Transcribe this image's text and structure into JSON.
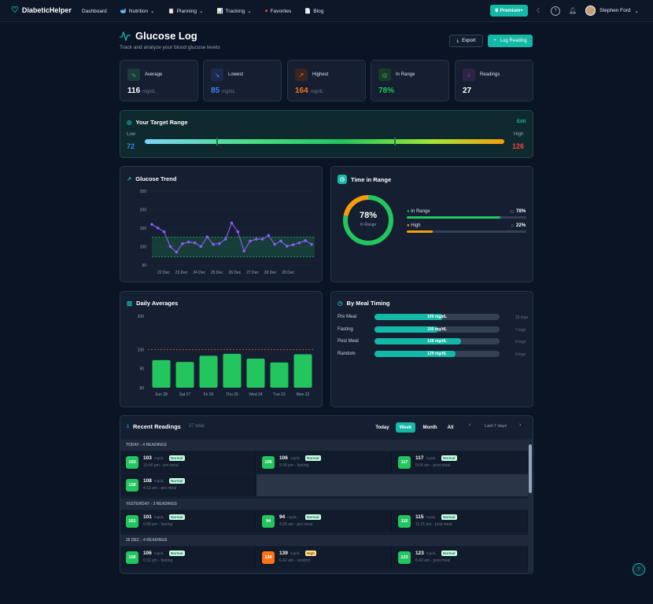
{
  "nav": {
    "logo_text": "DiabeticHelper",
    "items": [
      {
        "label": "Dashboard",
        "icon": ""
      },
      {
        "label": "Nutrition",
        "icon": "bowl-icon"
      },
      {
        "label": "Planning",
        "icon": "clipboard-icon"
      },
      {
        "label": "Tracking",
        "icon": "chart-icon"
      },
      {
        "label": "Favorites",
        "icon": "heart-icon"
      },
      {
        "label": "Blog",
        "icon": "note-icon"
      }
    ],
    "premium_label": "Premium+",
    "user_name": "Stephen Ford"
  },
  "header": {
    "title": "Glucose Log",
    "subtitle": "Track and analyze your blood glucose levels",
    "export_label": "Export",
    "log_label": "Log Reading"
  },
  "stats": [
    {
      "label": "Average",
      "value": "116",
      "unit": "mg/dL",
      "color": "#ffffff"
    },
    {
      "label": "Lowest",
      "value": "85",
      "unit": "mg/dL",
      "color": "#3b82f6"
    },
    {
      "label": "Highest",
      "value": "164",
      "unit": "mg/dL",
      "color": "#f97316"
    },
    {
      "label": "In Range",
      "value": "78%",
      "unit": "",
      "color": "#22c55e"
    },
    {
      "label": "Readings",
      "value": "27",
      "unit": "",
      "color": "#ffffff"
    }
  ],
  "target": {
    "title": "Your Target Range",
    "edit_label": "Edit",
    "low_label": "Low",
    "low_value": "72",
    "high_label": "High",
    "high_value": "126"
  },
  "trend": {
    "title": "Glucose Trend"
  },
  "chart_data": [
    {
      "type": "line",
      "title": "Glucose Trend",
      "y_ticks": [
        250,
        200,
        150,
        100,
        50
      ],
      "ylim": [
        50,
        250
      ],
      "x_labels": [
        "22 Dec",
        "23 Dec",
        "24 Dec",
        "25 Dec",
        "26 Dec",
        "27 Dec",
        "28 Dec",
        "28 Dec"
      ],
      "target_band": [
        72,
        126
      ],
      "values": [
        160,
        150,
        140,
        100,
        85,
        108,
        112,
        110,
        100,
        126,
        106,
        108,
        120,
        164,
        140,
        88,
        115,
        120,
        120,
        130,
        106,
        115,
        101,
        105,
        110,
        116,
        106
      ],
      "grid": true
    },
    {
      "type": "bar",
      "title": "Daily Averages",
      "categories": [
        "Sun 28",
        "Sat 27",
        "Fri 26",
        "Thu 25",
        "Wed 24",
        "Tue 23",
        "Mon 22"
      ],
      "values": [
        108,
        104,
        117,
        121,
        111,
        103,
        120
      ],
      "y_ticks": [
        200,
        130,
        90,
        50
      ],
      "ylim": [
        50,
        200
      ],
      "reference_line": 130
    },
    {
      "type": "pie",
      "title": "Time in Range",
      "center_value": "78%",
      "center_label": "In Range",
      "slices": [
        {
          "name": "In Range",
          "count": "21",
          "percent": 78,
          "color": "#22c55e"
        },
        {
          "name": "High",
          "count": "6",
          "percent": 22,
          "color": "#f59e0b"
        }
      ]
    },
    {
      "type": "bar",
      "title": "By Meal Timing",
      "categories": [
        "Pre Meal",
        "Fasting",
        "Post Meal",
        "Random"
      ],
      "values": [
        109,
        100,
        138,
        129
      ],
      "value_labels": [
        "109 mg/dL",
        "100 mg/dL",
        "138 mg/dL",
        "129 mg/dL"
      ],
      "counts": [
        "10 logs",
        "7 logs",
        "6 logs",
        "4 logs"
      ],
      "fill_fraction": [
        0.55,
        0.51,
        0.69,
        0.65
      ]
    }
  ],
  "daily": {
    "title": "Daily Averages"
  },
  "tir": {
    "title": "Time in Range"
  },
  "meal": {
    "title": "By Meal Timing"
  },
  "recent": {
    "title": "Recent Readings",
    "total": "27 total",
    "filters": [
      "Today",
      "Week",
      "Month",
      "All"
    ],
    "active_filter": "Week",
    "range_label": "Last 7 days",
    "groups": [
      {
        "label": "TODAY - 4 READINGS",
        "readings": [
          {
            "value": "103",
            "unit": "mg/dL",
            "status": "Normal",
            "sub": "10:40 pm - pre meal",
            "color": "#22c55e"
          },
          {
            "value": "106",
            "unit": "mg/dL",
            "status": "Normal",
            "sub": "5:38 pm - fasting",
            "color": "#22c55e"
          },
          {
            "value": "117",
            "unit": "mg/dL",
            "status": "Normal",
            "sub": "9:04 am - post meal",
            "color": "#22c55e"
          },
          {
            "value": "108",
            "unit": "mg/dL",
            "status": "Normal",
            "sub": "4:19 am - pre meal",
            "color": "#22c55e"
          }
        ]
      },
      {
        "label": "YESTERDAY - 3 READINGS",
        "readings": [
          {
            "value": "101",
            "unit": "mg/dL",
            "status": "Normal",
            "sub": "5:08 pm - fasting",
            "color": "#22c55e"
          },
          {
            "value": "94",
            "unit": "mg/dL",
            "status": "Normal",
            "sub": "4:25 am - pre meal",
            "color": "#22c55e"
          },
          {
            "value": "115",
            "unit": "mg/dL",
            "status": "Normal",
            "sub": "11:21 am - post meal",
            "color": "#22c55e"
          }
        ]
      },
      {
        "label": "26 DEC - 4 READINGS",
        "readings": [
          {
            "value": "106",
            "unit": "mg/dL",
            "status": "Normal",
            "sub": "5:31 pm - fasting",
            "color": "#22c55e"
          },
          {
            "value": "139",
            "unit": "mg/dL",
            "status": "High",
            "sub": "6:42 am - random",
            "color": "#f97316"
          },
          {
            "value": "123",
            "unit": "mg/dL",
            "status": "Normal",
            "sub": "6:43 am - post meal",
            "color": "#22c55e"
          }
        ]
      }
    ]
  }
}
